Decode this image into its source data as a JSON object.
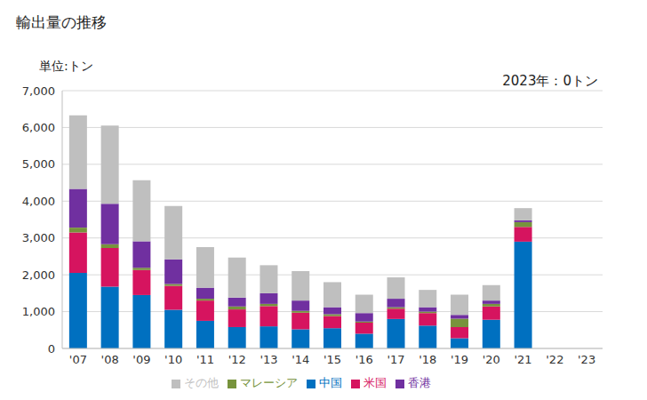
{
  "chart_data": {
    "type": "bar",
    "title": "輸出量の推移",
    "subtitle": "単位:トン",
    "annotation": "2023年：0トン",
    "stacked": true,
    "grid": true,
    "legend": "bottom",
    "categories": [
      "'07",
      "'08",
      "'09",
      "'10",
      "'11",
      "'12",
      "'13",
      "'14",
      "'15",
      "'16",
      "'17",
      "'18",
      "'19",
      "'20",
      "'21",
      "'22",
      "'23"
    ],
    "ylim": [
      0,
      7000
    ],
    "yticks": [
      0,
      {
        "value": 1000,
        "label": "1,000"
      },
      {
        "value": 2000,
        "label": "2,000"
      },
      {
        "value": 3000,
        "label": "3,000"
      },
      {
        "value": 4000,
        "label": "4,000"
      },
      {
        "value": 5000,
        "label": "5,000"
      },
      {
        "value": 6000,
        "label": "6,000"
      },
      {
        "value": 7000,
        "label": "7,000"
      }
    ],
    "series": [
      {
        "name": "中国",
        "color": "#0070c0",
        "values": [
          2050,
          1680,
          1450,
          1050,
          750,
          580,
          600,
          520,
          550,
          400,
          800,
          620,
          280,
          780,
          2900,
          null,
          0
        ]
      },
      {
        "name": "米国",
        "color": "#d6145f",
        "values": [
          1100,
          1050,
          680,
          650,
          550,
          480,
          550,
          450,
          330,
          300,
          280,
          340,
          300,
          360,
          400,
          null,
          0
        ]
      },
      {
        "name": "マレーシア",
        "color": "#77933c",
        "values": [
          130,
          100,
          60,
          50,
          50,
          80,
          60,
          50,
          50,
          30,
          40,
          40,
          230,
          70,
          130,
          null,
          0
        ]
      },
      {
        "name": "香港",
        "color": "#7030a0",
        "values": [
          1050,
          1100,
          720,
          670,
          300,
          240,
          290,
          280,
          190,
          230,
          230,
          120,
          100,
          90,
          50,
          null,
          0
        ]
      },
      {
        "name": "その他",
        "color": "#bfbfbf",
        "values": [
          2000,
          2120,
          1660,
          1450,
          1100,
          1090,
          760,
          800,
          680,
          500,
          580,
          470,
          550,
          420,
          330,
          null,
          0
        ]
      }
    ]
  }
}
